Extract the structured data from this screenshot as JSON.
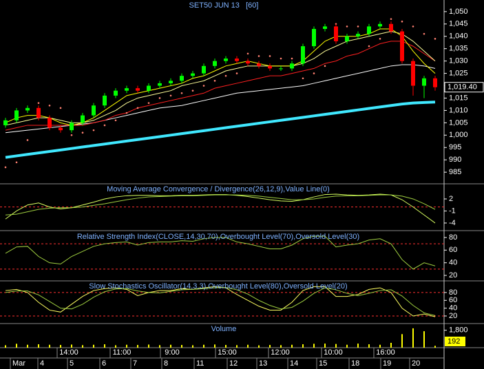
{
  "chart_data": [
    {
      "type": "candlestick",
      "title": "SET50 JUN 13   [60]",
      "open": [
        1004,
        1006,
        1010,
        1011,
        1007,
        1003,
        1002,
        1005,
        1008,
        1012,
        1016,
        1018,
        1019,
        1018,
        1020,
        1021,
        1022,
        1024,
        1025,
        1028,
        1030,
        1031,
        1030,
        1029,
        1028,
        1027,
        1027,
        1029,
        1036,
        1043,
        1044,
        1038,
        1040,
        1041,
        1044,
        1045,
        1042,
        1030,
        1020,
        1023
      ],
      "high": [
        1007,
        1011,
        1012,
        1012,
        1008,
        1004,
        1006,
        1009,
        1013,
        1017,
        1019,
        1020,
        1020,
        1021,
        1022,
        1023,
        1025,
        1026,
        1029,
        1031,
        1032,
        1032,
        1031,
        1030,
        1029,
        1028,
        1030,
        1037,
        1044,
        1045,
        1045,
        1041,
        1042,
        1045,
        1046,
        1046,
        1043,
        1031,
        1024,
        1024
      ],
      "low": [
        1003,
        1005,
        1009,
        1006,
        1002,
        1001,
        1001,
        1004,
        1007,
        1011,
        1015,
        1017,
        1017,
        1017,
        1019,
        1020,
        1021,
        1023,
        1024,
        1027,
        1029,
        1029,
        1028,
        1027,
        1026,
        1026,
        1026,
        1028,
        1035,
        1042,
        1037,
        1037,
        1039,
        1040,
        1043,
        1041,
        1029,
        1016,
        1015,
        1018
      ],
      "close": [
        1006,
        1010,
        1011,
        1007,
        1003,
        1002,
        1005,
        1008,
        1012,
        1016,
        1018,
        1019,
        1018,
        1020,
        1021,
        1022,
        1024,
        1025,
        1028,
        1030,
        1031,
        1030,
        1029,
        1028,
        1027,
        1027,
        1029,
        1036,
        1043,
        1044,
        1038,
        1040,
        1041,
        1044,
        1045,
        1042,
        1030,
        1020,
        1023,
        1019.4
      ],
      "last_label": "1,019.40",
      "up_color": "#00ff00",
      "down_color": "#ff0000",
      "lines": [
        {
          "color": "#40e8ff",
          "width": 4,
          "values": [
            991,
            991.6,
            992.2,
            992.8,
            993.4,
            994,
            994.6,
            995.2,
            995.8,
            996.4,
            997,
            997.6,
            998.2,
            998.8,
            999.4,
            1000,
            1000.6,
            1001.2,
            1001.8,
            1002.4,
            1003,
            1003.6,
            1004.2,
            1004.8,
            1005.4,
            1006,
            1006.6,
            1007.2,
            1007.8,
            1008.4,
            1009,
            1009.6,
            1010.2,
            1010.8,
            1011.4,
            1012,
            1012.6,
            1013,
            1013.2,
            1013.4
          ]
        },
        {
          "color": "#ffffff",
          "width": 1,
          "values": [
            1001,
            1001.5,
            1002,
            1002.5,
            1003,
            1003.5,
            1004,
            1004.5,
            1005,
            1006,
            1007,
            1008,
            1009,
            1010,
            1011,
            1011.5,
            1012,
            1013,
            1014,
            1015,
            1016,
            1017,
            1017.5,
            1018,
            1018.5,
            1019,
            1019.5,
            1020,
            1021,
            1022,
            1023,
            1024,
            1025,
            1026,
            1027,
            1028,
            1028.5,
            1028.5,
            1028,
            1027
          ]
        },
        {
          "color": "#ff2020",
          "width": 1,
          "values": [
            1002,
            1003,
            1004,
            1004,
            1004,
            1004,
            1004,
            1004,
            1005,
            1006,
            1008,
            1009,
            1011,
            1012,
            1013,
            1014,
            1015,
            1016,
            1017,
            1019,
            1020,
            1021,
            1022,
            1023,
            1024,
            1024,
            1025,
            1026,
            1027,
            1029,
            1030,
            1032,
            1033,
            1035,
            1037,
            1038,
            1038,
            1036,
            1033,
            1030
          ]
        },
        {
          "color": "#ffff99",
          "width": 1,
          "values": [
            1004,
            1005,
            1006,
            1007,
            1007,
            1006,
            1005,
            1005,
            1006,
            1008,
            1010,
            1013,
            1015,
            1016,
            1017,
            1018,
            1020,
            1021,
            1022,
            1024,
            1026,
            1027,
            1028,
            1028,
            1028,
            1028,
            1028,
            1029,
            1031,
            1034,
            1036,
            1038,
            1039,
            1040,
            1041,
            1042,
            1041,
            1038,
            1034,
            1030
          ]
        },
        {
          "color": "#ffff00",
          "width": 1,
          "values": [
            1005,
            1007,
            1008,
            1008,
            1007,
            1005,
            1004,
            1005,
            1007,
            1010,
            1013,
            1016,
            1017,
            1018,
            1019,
            1020,
            1021,
            1023,
            1024,
            1026,
            1028,
            1029,
            1030,
            1029,
            1028,
            1028,
            1028,
            1030,
            1034,
            1038,
            1040,
            1040,
            1040,
            1041,
            1043,
            1043,
            1040,
            1034,
            1029,
            1025
          ]
        }
      ],
      "sar": {
        "color": "#ff8070",
        "values": [
          987,
          989,
          998,
          1013,
          1012,
          1011,
          1000,
          1001,
          1002,
          1004,
          1006,
          1009,
          1011,
          1013,
          1015,
          1016,
          1017,
          1018,
          1020,
          1022,
          1024,
          1025,
          1033,
          1032,
          1032,
          1031,
          1031,
          1023,
          1025,
          1028,
          1045,
          1044,
          1044,
          1036,
          1039,
          1047,
          1046,
          1044,
          1041,
          1039
        ]
      },
      "ylim": [
        980.3,
        1054.7
      ],
      "yticks": [
        985,
        990,
        995,
        {
          "value": 1000,
          "label": "1,000"
        },
        {
          "value": 1005,
          "label": "1,005"
        },
        {
          "value": 1010,
          "label": "1,010"
        },
        {
          "value": 1015,
          "label": "1,015"
        },
        {
          "value": 1020,
          "label": "1,020"
        },
        {
          "value": 1025,
          "label": "1,025"
        },
        {
          "value": 1030,
          "label": "1,030"
        },
        {
          "value": 1035,
          "label": "1,035"
        },
        {
          "value": 1040,
          "label": "1,040"
        },
        {
          "value": 1045,
          "label": "1,045"
        },
        {
          "value": 1050,
          "label": "1,050"
        }
      ],
      "time_labels": [
        "14:00",
        "11:00",
        "9:00",
        "15:00",
        "12:00",
        "10:00",
        "16:00"
      ],
      "date_labels": [
        "Mar",
        "4",
        "5",
        "6",
        "7",
        "8",
        "11",
        "12",
        "13",
        "14",
        "15",
        "18",
        "19",
        "20"
      ]
    },
    {
      "type": "line",
      "title": "Moving Average Convergence / Divergence(26,12,9),Value Line(0)",
      "series": [
        {
          "color": "#d8ff60",
          "values": [
            -3,
            -1,
            0.5,
            1,
            0,
            -0.5,
            -0.2,
            0.5,
            1.2,
            2,
            2.5,
            2.8,
            2.9,
            2.9,
            2.8,
            2.8,
            2.9,
            2.9,
            3,
            3.1,
            3.1,
            2.9,
            2.6,
            2.2,
            1.8,
            1.5,
            1.4,
            1.8,
            2.5,
            3.1,
            3.2,
            3,
            2.9,
            3,
            3.2,
            3,
            1.8,
            0,
            -2,
            -4
          ]
        },
        {
          "color": "#a0d040",
          "values": [
            -2,
            -1.8,
            -1.2,
            -0.6,
            -0.3,
            -0.2,
            -0.2,
            0,
            0.4,
            0.8,
            1.3,
            1.8,
            2.2,
            2.5,
            2.6,
            2.7,
            2.8,
            2.8,
            2.9,
            3,
            3,
            3,
            2.9,
            2.7,
            2.4,
            2.1,
            1.8,
            1.8,
            2,
            2.4,
            2.7,
            2.8,
            2.8,
            2.9,
            3,
            3,
            2.7,
            2,
            0.8,
            -0.6
          ]
        }
      ],
      "ref_lines": [
        0
      ],
      "ref_color": "#ff3030",
      "ylim": [
        -5.9,
        5.6
      ],
      "yticks": [
        2,
        -1,
        -4
      ]
    },
    {
      "type": "line",
      "title": "Relative Strength Index(CLOSE,14,30,70),Overbought Level(70),Oversold Level(30)",
      "series": [
        {
          "color": "#a0d040",
          "values": [
            55,
            65,
            66,
            50,
            40,
            38,
            50,
            58,
            66,
            70,
            72,
            73,
            68,
            72,
            73,
            73,
            75,
            74,
            78,
            80,
            80,
            73,
            70,
            66,
            62,
            62,
            68,
            78,
            82,
            82,
            65,
            68,
            70,
            76,
            78,
            70,
            45,
            30,
            40,
            35
          ]
        }
      ],
      "ref_lines": [
        70,
        30
      ],
      "ref_color": "#ff3030",
      "ylim": [
        11.3,
        88.7
      ],
      "yticks": [
        80,
        60,
        40,
        20
      ]
    },
    {
      "type": "line",
      "title": "Slow Stochastics Oscillator(14,3,3),Overbought Level(80),Oversold Level(20)",
      "series": [
        {
          "color": "#ffff60",
          "values": [
            85,
            88,
            80,
            55,
            35,
            30,
            50,
            70,
            85,
            90,
            92,
            88,
            72,
            80,
            85,
            85,
            90,
            88,
            92,
            95,
            92,
            75,
            60,
            45,
            35,
            35,
            55,
            85,
            95,
            95,
            70,
            70,
            75,
            88,
            92,
            80,
            40,
            20,
            25,
            18
          ]
        },
        {
          "color": "#a0d040",
          "values": [
            80,
            84,
            84,
            74,
            57,
            40,
            38,
            50,
            68,
            82,
            89,
            90,
            84,
            80,
            79,
            83,
            87,
            88,
            90,
            92,
            93,
            87,
            76,
            60,
            47,
            38,
            42,
            58,
            78,
            92,
            87,
            78,
            72,
            78,
            85,
            87,
            71,
            47,
            28,
            21
          ]
        }
      ],
      "ref_lines": [
        80,
        20
      ],
      "ref_color": "#ff3030",
      "ylim": [
        0.6,
        108
      ],
      "yticks": [
        80,
        60,
        40,
        20
      ]
    },
    {
      "type": "bar",
      "title": "Volume",
      "color": "#ffff00",
      "values": [
        250,
        400,
        300,
        350,
        300,
        280,
        320,
        260,
        300,
        350,
        250,
        300,
        280,
        320,
        260,
        300,
        280,
        250,
        300,
        330,
        280,
        260,
        300,
        240,
        280,
        260,
        300,
        350,
        400,
        420,
        380,
        300,
        420,
        350,
        300,
        500,
        1400,
        2000,
        1700,
        192
      ],
      "ylim": [
        0,
        2420
      ],
      "yticks": [
        {
          "value": 1800,
          "label": "1,800"
        }
      ]
    }
  ]
}
